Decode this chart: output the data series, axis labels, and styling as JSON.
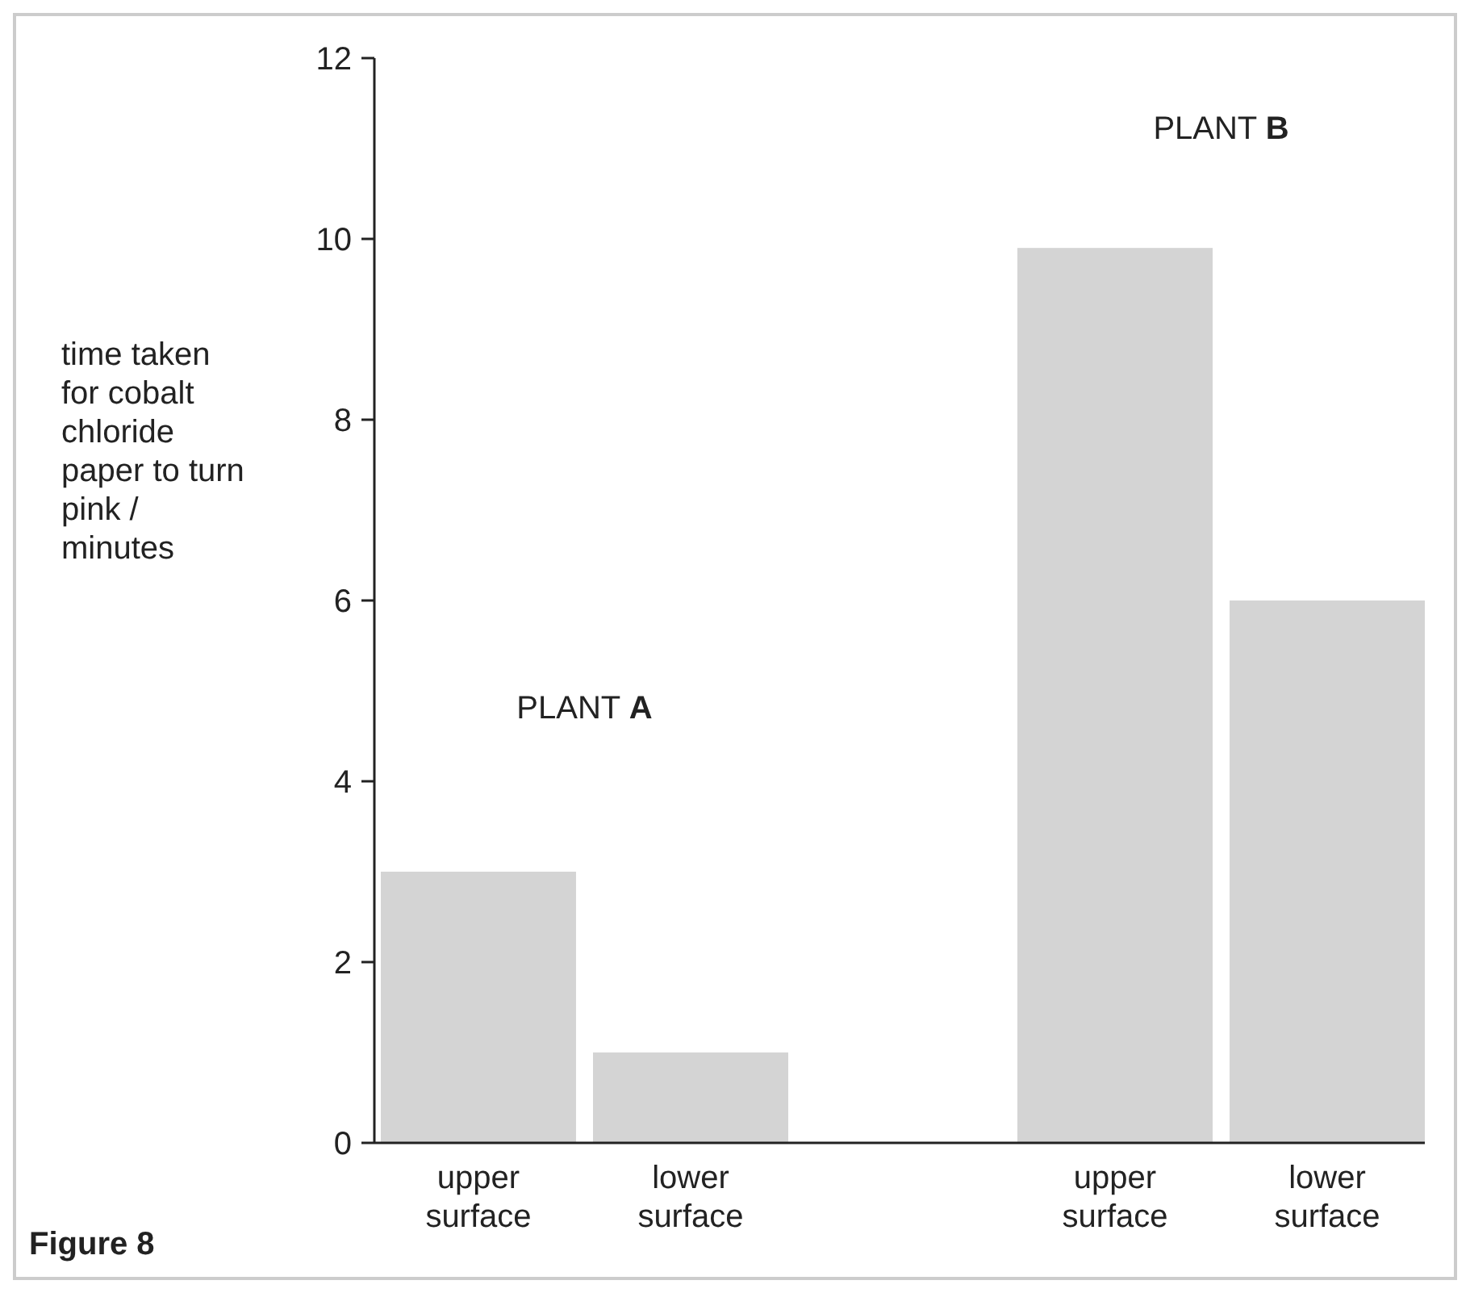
{
  "chart_data": {
    "type": "bar",
    "title": "Figure 8",
    "ylabel": "time taken for cobalt chloride paper to turn pink / minutes",
    "categories": [
      "upper surface",
      "lower surface",
      null,
      "upper surface",
      "lower surface"
    ],
    "values": [
      3,
      1,
      null,
      9.9,
      6
    ],
    "color": "#d4d4d4",
    "ylim": [
      0,
      12
    ],
    "yticks": [
      0,
      2,
      4,
      6,
      8,
      10,
      12
    ],
    "grid": false,
    "annotations": [
      "PLANT A",
      "PLANT B"
    ]
  }
}
